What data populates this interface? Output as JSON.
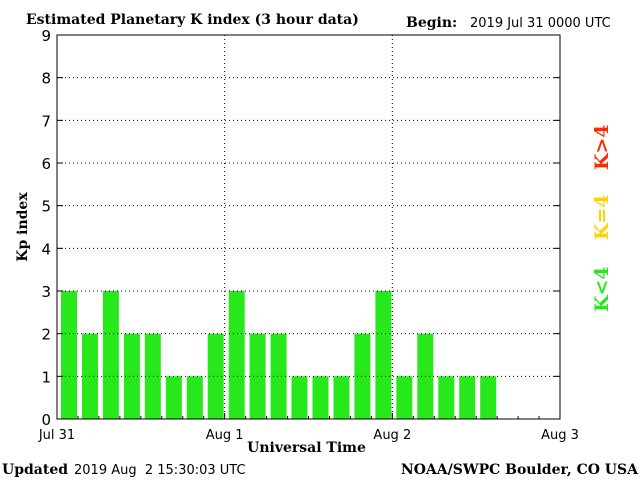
{
  "header": {
    "title": "Estimated Planetary K index (3 hour data)",
    "begin_label": "Begin:",
    "begin_value": "2019 Jul 31 0000 UTC"
  },
  "footer": {
    "updated_label": "Updated",
    "updated_value": "2019 Aug  2 15:30:03 UTC",
    "source": "NOAA/SWPC Boulder, CO USA"
  },
  "legend": {
    "high": {
      "label": "K>4",
      "color": "#ff2a00"
    },
    "mid": {
      "label": "K=4",
      "color": "#ffd200"
    },
    "low": {
      "label": "K<4",
      "color": "#27e81b"
    }
  },
  "chart_data": {
    "type": "bar",
    "title": "Estimated Planetary K index (3 hour data)",
    "xlabel": "Universal Time",
    "ylabel": "Kp index",
    "ylim": [
      0,
      9
    ],
    "yticks": [
      "0",
      "1",
      "2",
      "3",
      "4",
      "5",
      "6",
      "7",
      "8",
      "9"
    ],
    "xticks": [
      "Jul 31",
      "Aug 1",
      "Aug 2",
      "Aug 3"
    ],
    "bins_per_day": 8,
    "days": 3,
    "values": [
      3,
      2,
      3,
      2,
      2,
      1,
      1,
      2,
      3,
      2,
      2,
      1,
      1,
      1,
      2,
      3,
      1,
      2,
      1,
      1,
      1
    ],
    "bar_color": "#27e81b",
    "grid": true
  }
}
